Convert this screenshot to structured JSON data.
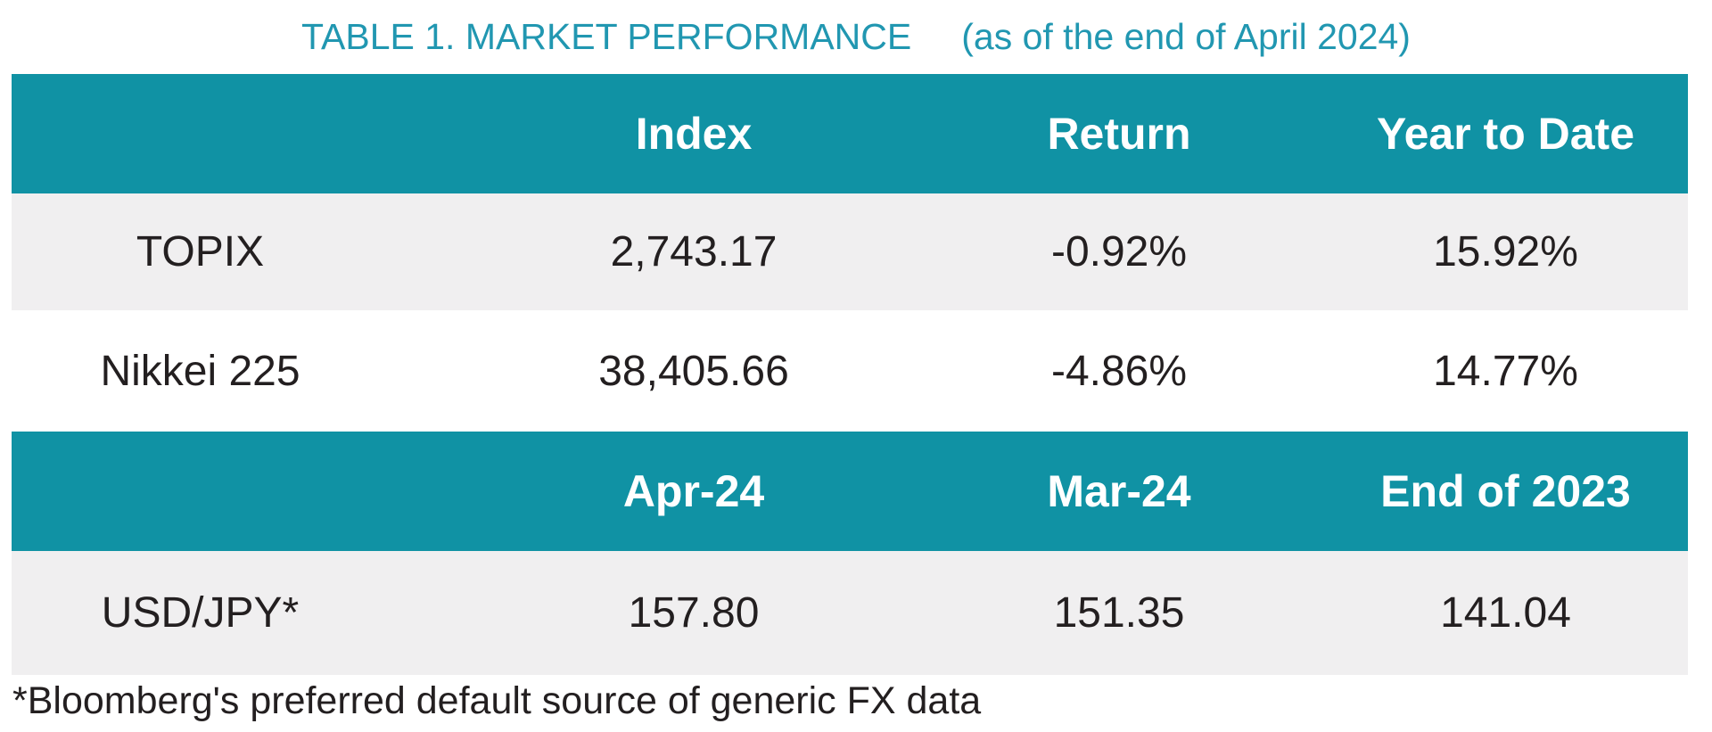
{
  "title": {
    "main": "TABLE 1. MARKET PERFORMANCE",
    "suffix": "(as of the end of April 2024)"
  },
  "market_table": {
    "headers": [
      "",
      "Index",
      "Return",
      "Year to Date"
    ],
    "rows": [
      {
        "label": "TOPIX",
        "index": "2,743.17",
        "return": "-0.92%",
        "ytd": "15.92%"
      },
      {
        "label": "Nikkei 225",
        "index": "38,405.66",
        "return": "-4.86%",
        "ytd": "14.77%"
      }
    ]
  },
  "fx_table": {
    "headers": [
      "",
      "Apr-24",
      "Mar-24",
      "End of 2023"
    ],
    "rows": [
      {
        "label": "USD/JPY*",
        "apr": "157.80",
        "mar": "151.35",
        "end2023": "141.04"
      }
    ]
  },
  "footnote": "*Bloomberg's preferred default source of generic FX data",
  "colors": {
    "header_bg": "#1092a4",
    "row_alt_bg": "#f0eff0",
    "title_text": "#2197b1",
    "body_text": "#231f20",
    "header_text": "#ffffff"
  }
}
